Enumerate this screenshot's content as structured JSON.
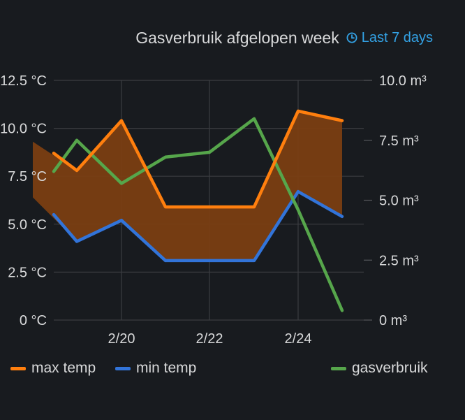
{
  "panel": {
    "title": "Gasverbruik afgelopen week",
    "time_range": "Last 7 days"
  },
  "colors": {
    "max_temp": "#ff7f0e",
    "min_temp": "#3274d9",
    "gas": "#56a64b",
    "fill": "#7a3e12"
  },
  "chart_data": {
    "type": "line",
    "x": [
      "2/18",
      "2/19",
      "2/20",
      "2/21",
      "2/22",
      "2/23",
      "2/24",
      "2/25"
    ],
    "x_tick_labels": [
      "2/20",
      "2/22",
      "2/24"
    ],
    "y_left_ticks": [
      "0 °C",
      "2.5 °C",
      "5.0 °C",
      "7.5 °C",
      "10.0 °C",
      "12.5 °C"
    ],
    "y_right_ticks": [
      "0 m³",
      "2.5 m³",
      "5.0 m³",
      "7.5 m³",
      "10.0 m³"
    ],
    "ylim_left": [
      0,
      12.5
    ],
    "ylim_right": [
      0,
      10
    ],
    "grid": true,
    "legend_placement": "bottom",
    "series": [
      {
        "name": "max temp",
        "axis": "left",
        "values": [
          8.7,
          7.8,
          10.4,
          5.9,
          5.9,
          5.9,
          10.9,
          10.4
        ]
      },
      {
        "name": "min temp",
        "axis": "left",
        "values": [
          5.5,
          4.1,
          5.2,
          3.1,
          3.1,
          3.1,
          6.7,
          5.4
        ]
      },
      {
        "name": "gasverbruik",
        "axis": "right",
        "values": [
          6.2,
          7.5,
          5.7,
          6.8,
          7.0,
          8.4,
          4.6,
          0.4
        ]
      }
    ]
  }
}
